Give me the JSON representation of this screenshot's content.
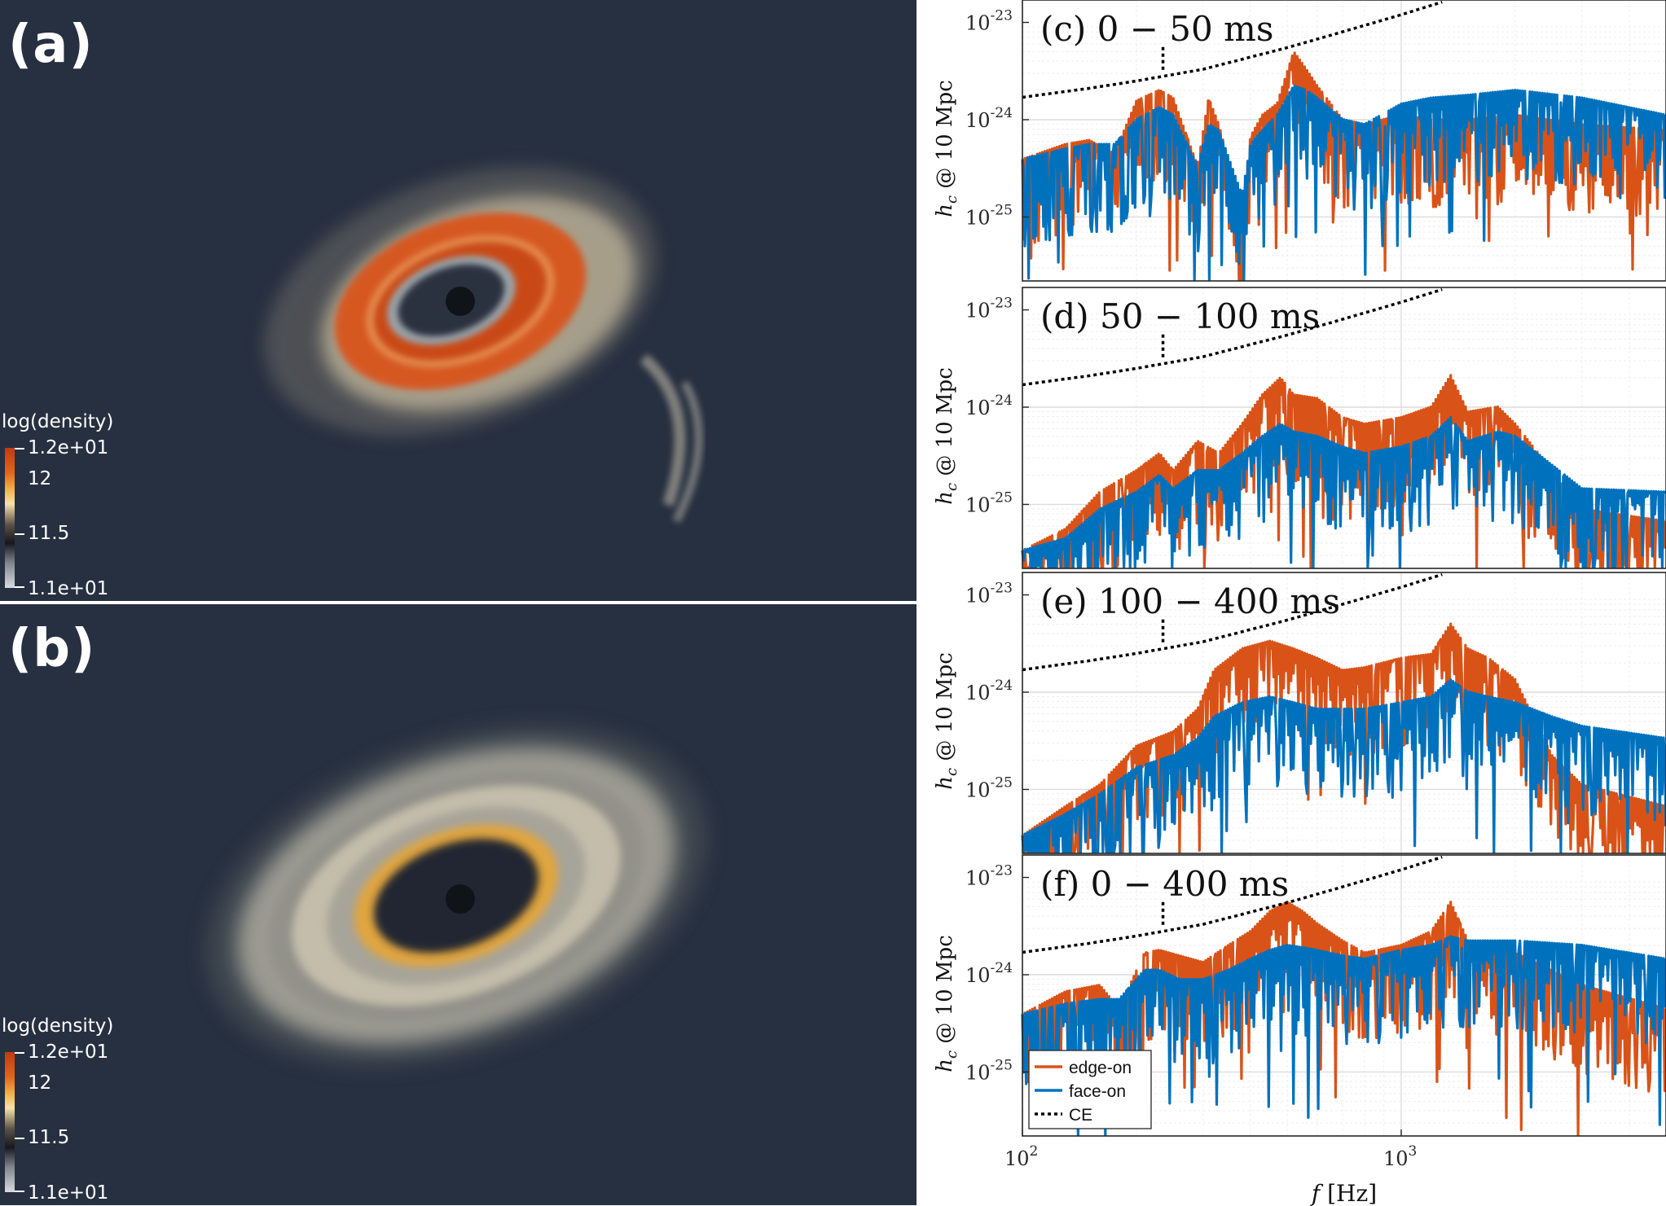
{
  "panels_sim": [
    {
      "letter": "(a)",
      "colorbar": {
        "title": "log(density)",
        "labels": [
          "1.2e+01",
          "12",
          "11.5",
          "1.1e+01"
        ]
      }
    },
    {
      "letter": "(b)",
      "colorbar": {
        "title": "log(density)",
        "labels": [
          "1.2e+01",
          "12",
          "11.5",
          "1.1e+01"
        ]
      }
    }
  ],
  "colors": {
    "edge_on": "#d95319",
    "face_on": "#0072bd",
    "ce": "#000000",
    "sim_background": "#273040"
  },
  "chart_data": [
    {
      "type": "line",
      "panel": "c",
      "title": "(c) 0 − 50 ms",
      "ylabel": "h_c @ 10 Mpc",
      "xlabel": "",
      "xscale": "log",
      "yscale": "log",
      "xlim": [
        100,
        5000
      ],
      "ylim": [
        2.2e-26,
        1.7e-23
      ],
      "grid": true,
      "yticks": [
        "10^-23",
        "10^-24",
        "10^-25"
      ],
      "series": [
        {
          "name": "edge-on",
          "x": [
            100,
            130,
            150,
            175,
            200,
            230,
            250,
            290,
            310,
            330,
            380,
            400,
            430,
            470,
            520,
            560,
            600,
            700,
            800,
            1000,
            1200,
            1500,
            2000,
            3000,
            5000
          ],
          "y": [
            3.5e-25,
            5e-25,
            5.5e-25,
            4e-25,
            1.4e-24,
            1.8e-24,
            1.5e-24,
            3e-25,
            1.5e-24,
            8e-25,
            1e-25,
            6e-25,
            1e-24,
            1.3e-24,
            4.5e-24,
            3e-24,
            2e-24,
            9e-25,
            8e-25,
            1e-24,
            9e-25,
            9e-25,
            1e-24,
            8e-25,
            7e-25
          ]
        },
        {
          "name": "face-on",
          "x": [
            100,
            130,
            150,
            175,
            200,
            230,
            250,
            290,
            310,
            330,
            380,
            400,
            430,
            470,
            520,
            560,
            600,
            700,
            800,
            1000,
            1200,
            1500,
            2000,
            3000,
            5000
          ],
          "y": [
            3.5e-25,
            4.5e-25,
            5e-25,
            5e-25,
            9e-25,
            1.2e-24,
            1e-24,
            3e-25,
            8e-25,
            7e-25,
            1.5e-25,
            5e-25,
            7e-25,
            1e-24,
            2e-24,
            1.8e-24,
            1.5e-24,
            9e-25,
            8e-25,
            1.3e-24,
            1.5e-24,
            1.6e-24,
            1.8e-24,
            1.5e-24,
            1e-24
          ]
        },
        {
          "name": "CE",
          "x": [
            100,
            150,
            200,
            300,
            500,
            700,
            1000,
            1400
          ],
          "y": [
            1.7e-24,
            2.1e-24,
            2.5e-24,
            3.3e-24,
            5.5e-24,
            8e-24,
            1.2e-23,
            1.8e-23
          ]
        }
      ]
    },
    {
      "type": "line",
      "panel": "d",
      "title": "(d) 50 − 100 ms",
      "ylabel": "h_c @ 10 Mpc",
      "xlabel": "",
      "xscale": "log",
      "yscale": "log",
      "xlim": [
        100,
        5000
      ],
      "ylim": [
        2.2e-26,
        1.7e-23
      ],
      "grid": true,
      "yticks": [
        "10^-23",
        "10^-24",
        "10^-25"
      ],
      "series": [
        {
          "name": "edge-on",
          "x": [
            100,
            130,
            160,
            200,
            230,
            250,
            290,
            330,
            380,
            430,
            480,
            520,
            600,
            700,
            800,
            1000,
            1200,
            1350,
            1500,
            1800,
            2000,
            3000,
            5000
          ],
          "y": [
            3e-26,
            5e-26,
            1.2e-25,
            2e-25,
            3e-25,
            2e-25,
            4e-25,
            3e-25,
            6e-25,
            1.2e-24,
            1.8e-24,
            1.2e-24,
            1.1e-24,
            7e-25,
            6e-25,
            7e-25,
            9e-25,
            1.9e-24,
            8e-25,
            9e-25,
            6e-25,
            8e-26,
            6e-26
          ]
        },
        {
          "name": "face-on",
          "x": [
            100,
            130,
            160,
            200,
            230,
            250,
            290,
            330,
            380,
            430,
            480,
            520,
            600,
            700,
            800,
            1000,
            1200,
            1350,
            1500,
            1800,
            2000,
            3000,
            5000
          ],
          "y": [
            3e-26,
            4e-26,
            8e-26,
            1.2e-25,
            1.8e-25,
            1.3e-25,
            2e-25,
            2e-25,
            3e-25,
            4.5e-25,
            6e-25,
            5e-25,
            4.5e-25,
            3.5e-25,
            3e-25,
            3.5e-25,
            4.5e-25,
            7e-25,
            4e-25,
            5e-25,
            4.5e-25,
            1.3e-25,
            1.2e-25
          ]
        },
        {
          "name": "CE",
          "x": [
            100,
            150,
            200,
            300,
            500,
            700,
            1000,
            1400
          ],
          "y": [
            1.7e-24,
            2.1e-24,
            2.5e-24,
            3.3e-24,
            5.5e-24,
            8e-24,
            1.2e-23,
            1.8e-23
          ]
        }
      ]
    },
    {
      "type": "line",
      "panel": "e",
      "title": "(e) 100 − 400 ms",
      "ylabel": "h_c @ 10 Mpc",
      "xlabel": "",
      "xscale": "log",
      "yscale": "log",
      "xlim": [
        100,
        5000
      ],
      "ylim": [
        2.2e-26,
        1.7e-23
      ],
      "grid": true,
      "yticks": [
        "10^-23",
        "10^-24",
        "10^-25"
      ],
      "series": [
        {
          "name": "edge-on",
          "x": [
            100,
            130,
            160,
            200,
            250,
            290,
            320,
            380,
            450,
            520,
            600,
            700,
            800,
            1000,
            1200,
            1350,
            1500,
            1700,
            2000,
            2500,
            3000,
            5000
          ],
          "y": [
            3e-26,
            6e-26,
            1e-25,
            2.5e-25,
            3.5e-25,
            6e-25,
            1.5e-24,
            2.5e-24,
            3e-24,
            2.5e-24,
            2e-24,
            1.5e-24,
            1.6e-24,
            2e-24,
            2.2e-24,
            4.5e-24,
            2.5e-24,
            2e-24,
            1.2e-24,
            2e-25,
            1e-25,
            6e-26
          ]
        },
        {
          "name": "face-on",
          "x": [
            100,
            130,
            160,
            200,
            250,
            290,
            320,
            380,
            450,
            520,
            600,
            700,
            800,
            1000,
            1200,
            1350,
            1500,
            1700,
            2000,
            2500,
            3000,
            5000
          ],
          "y": [
            3e-26,
            5e-26,
            8e-26,
            1.5e-25,
            2e-25,
            3e-25,
            5e-25,
            7e-25,
            8e-25,
            7e-25,
            6e-25,
            6e-25,
            6e-25,
            7e-25,
            8e-25,
            1.2e-24,
            9e-25,
            8e-25,
            7e-25,
            5e-25,
            4e-25,
            3e-25
          ]
        },
        {
          "name": "CE",
          "x": [
            100,
            150,
            200,
            300,
            500,
            700,
            1000,
            1400
          ],
          "y": [
            1.7e-24,
            2.1e-24,
            2.5e-24,
            3.3e-24,
            5.5e-24,
            8e-24,
            1.2e-23,
            1.8e-23
          ]
        }
      ]
    },
    {
      "type": "line",
      "panel": "f",
      "title": "(f) 0 − 400 ms",
      "ylabel": "h_c @ 10 Mpc",
      "xlabel": "f [Hz]",
      "xscale": "log",
      "yscale": "log",
      "xlim": [
        100,
        5000
      ],
      "ylim": [
        2.2e-26,
        1.7e-23
      ],
      "grid": true,
      "yticks": [
        "10^-23",
        "10^-24",
        "10^-25"
      ],
      "xticks": [
        "10^2",
        "10^3"
      ],
      "legend": {
        "position": "bottom-left",
        "entries": [
          "edge-on",
          "face-on",
          "CE"
        ]
      },
      "series": [
        {
          "name": "edge-on",
          "x": [
            100,
            130,
            160,
            180,
            210,
            230,
            260,
            300,
            350,
            400,
            450,
            500,
            550,
            600,
            700,
            800,
            1000,
            1200,
            1350,
            1500,
            2000,
            3000,
            5000
          ],
          "y": [
            3.5e-25,
            6e-25,
            7e-25,
            4e-25,
            1.5e-24,
            1.6e-24,
            1.4e-24,
            1.2e-24,
            1.8e-24,
            2.5e-24,
            4e-24,
            5e-24,
            4e-24,
            3e-24,
            2e-24,
            1.5e-24,
            1.8e-24,
            2.5e-24,
            5e-24,
            2e-24,
            1.5e-24,
            7e-25,
            4e-25
          ]
        },
        {
          "name": "face-on",
          "x": [
            100,
            130,
            160,
            180,
            210,
            230,
            260,
            300,
            350,
            400,
            450,
            500,
            550,
            600,
            700,
            800,
            1000,
            1200,
            1350,
            1500,
            2000,
            3000,
            5000
          ],
          "y": [
            3.5e-25,
            4.5e-25,
            5e-25,
            5e-25,
            1e-24,
            1e-24,
            8e-25,
            8e-25,
            1e-24,
            1.3e-24,
            1.6e-24,
            1.8e-24,
            1.7e-24,
            1.6e-24,
            1.4e-24,
            1.3e-24,
            1.6e-24,
            1.8e-24,
            2.2e-24,
            2e-24,
            2e-24,
            1.8e-24,
            1.3e-24
          ]
        },
        {
          "name": "CE",
          "x": [
            100,
            150,
            200,
            300,
            500,
            700,
            1000,
            1400
          ],
          "y": [
            1.7e-24,
            2.1e-24,
            2.5e-24,
            3.3e-24,
            5.5e-24,
            8e-24,
            1.2e-23,
            1.8e-23
          ]
        }
      ]
    }
  ]
}
